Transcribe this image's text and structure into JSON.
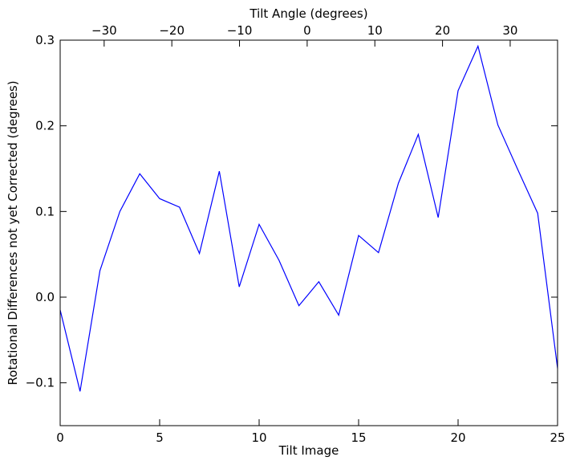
{
  "chart_data": {
    "type": "line",
    "xlabel": "Tilt Image",
    "ylabel": "Rotational Differences not yet Corrected (degrees)",
    "top_xlabel": "Tilt Angle (degrees)",
    "xlim": [
      0,
      25
    ],
    "ylim": [
      -0.15,
      0.3
    ],
    "top_xlim": [
      -36.5,
      37
    ],
    "x_ticks": [
      0,
      5,
      10,
      15,
      20,
      25
    ],
    "x_tick_labels": [
      "0",
      "5",
      "10",
      "15",
      "20",
      "25"
    ],
    "y_ticks": [
      -0.1,
      0.0,
      0.1,
      0.2,
      0.3
    ],
    "y_tick_labels": [
      "−0.1",
      "0.0",
      "0.1",
      "0.2",
      "0.3"
    ],
    "top_x_ticks": [
      -30,
      -20,
      -10,
      0,
      10,
      20,
      30
    ],
    "top_x_tick_labels": [
      "−30",
      "−20",
      "−10",
      "0",
      "10",
      "20",
      "30"
    ],
    "grid": false,
    "series": [
      {
        "color": "#0000ff",
        "x": [
          0,
          1,
          2,
          3,
          4,
          5,
          6,
          7,
          8,
          9,
          10,
          11,
          12,
          13,
          14,
          15,
          16,
          17,
          18,
          19,
          20,
          21,
          22,
          23,
          24,
          25
        ],
        "y": [
          -0.015,
          -0.11,
          0.031,
          0.1,
          0.144,
          0.115,
          0.105,
          0.051,
          0.147,
          0.012,
          0.085,
          0.043,
          -0.01,
          0.018,
          -0.021,
          0.072,
          0.052,
          0.133,
          0.19,
          0.093,
          0.241,
          0.293,
          0.201,
          0.149,
          0.098,
          -0.083
        ]
      }
    ]
  }
}
